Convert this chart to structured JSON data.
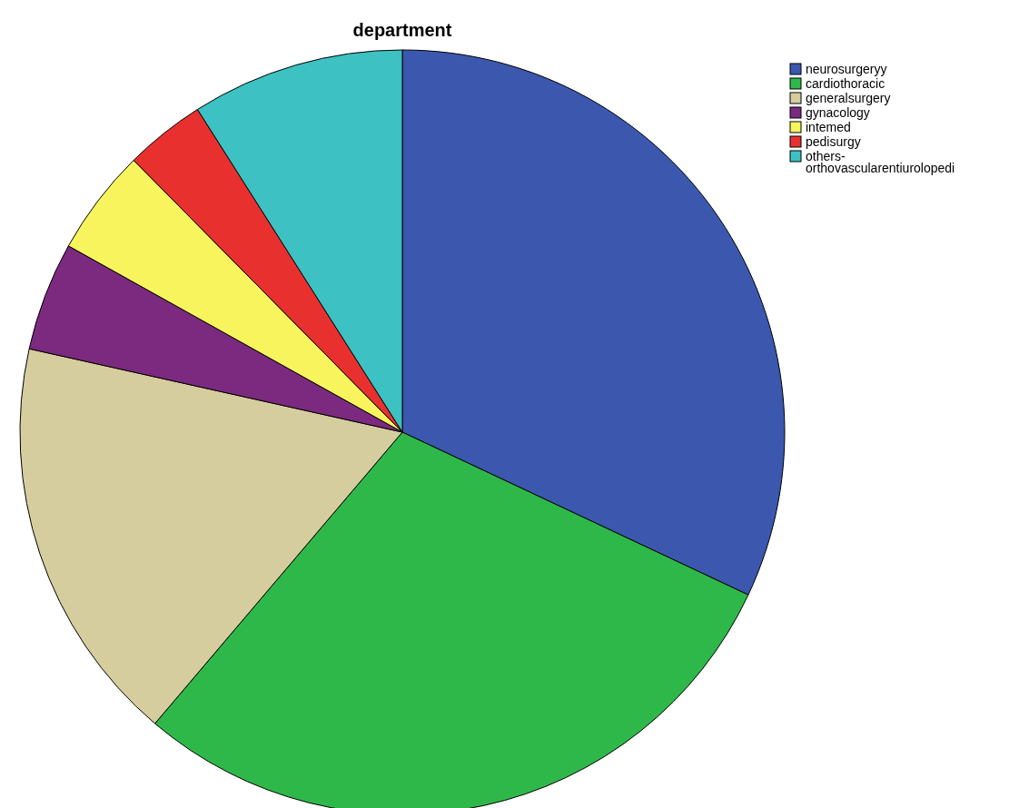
{
  "chart_data": {
    "type": "pie",
    "title": "department",
    "categories": [
      "neurosurgeryy",
      "cardiothoracic",
      "generalsurgery",
      "gynacology",
      "intemed",
      "pedisurgy",
      "others-orthovascularentiurolopedi"
    ],
    "values": [
      32.0,
      29.2,
      17.3,
      4.6,
      4.5,
      3.4,
      9.0
    ],
    "colors": [
      "#3b58ae",
      "#2fb84a",
      "#d5cd9e",
      "#7b2a7f",
      "#f8f45e",
      "#e8312f",
      "#3dc1c2"
    ],
    "legend": "top right"
  }
}
